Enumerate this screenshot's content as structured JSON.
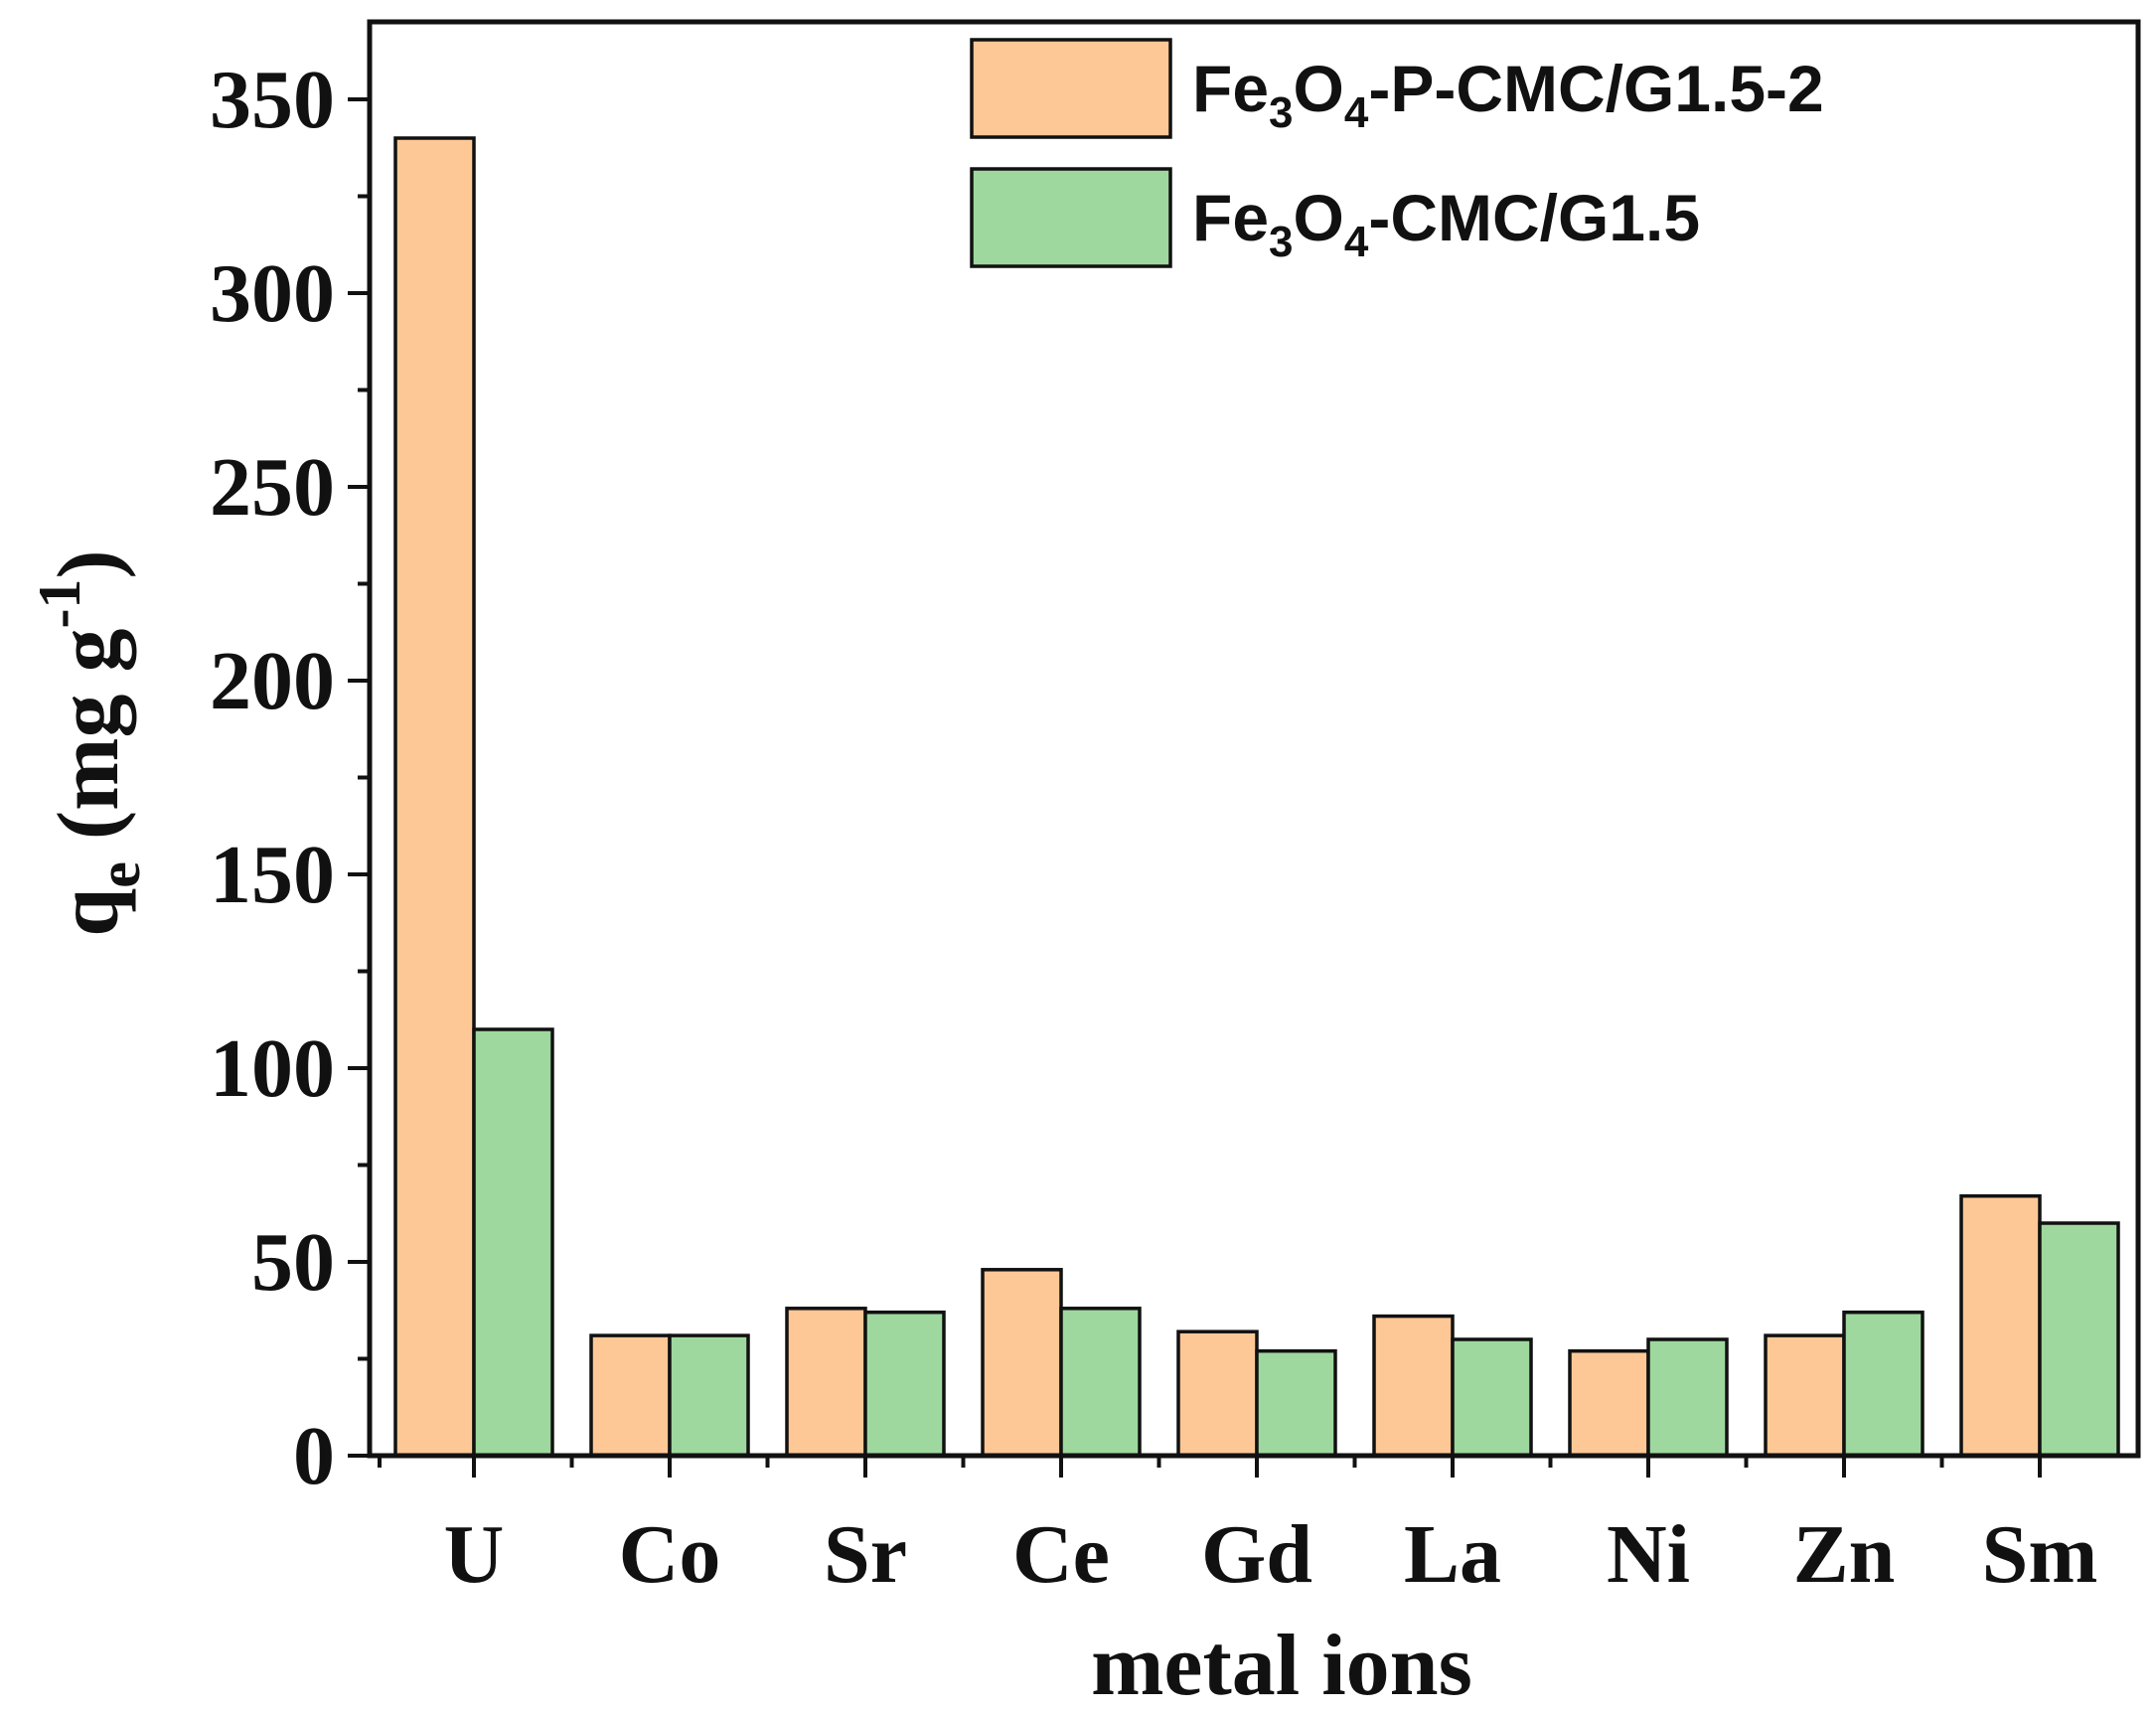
{
  "chart_data": {
    "type": "bar",
    "title": "",
    "xlabel": "metal ions",
    "ylabel": "q",
    "ylabel_sub": "e",
    "ylabel_unit_pre": " (mg g",
    "ylabel_unit_sup": "-1",
    "ylabel_unit_post": ")",
    "categories": [
      "U",
      "Co",
      "Sr",
      "Ce",
      "Gd",
      "La",
      "Ni",
      "Zn",
      "Sm"
    ],
    "ylim": [
      0,
      370
    ],
    "yticks": [
      0,
      50,
      100,
      150,
      200,
      250,
      300,
      350
    ],
    "legend_position": "top-right",
    "series": [
      {
        "name": "Fe3O4-P-CMC/G1.5-2",
        "name_parts": [
          [
            "Fe",
            ""
          ],
          [
            "3",
            "sub"
          ],
          [
            "O",
            ""
          ],
          [
            "4",
            "sub"
          ],
          [
            "-P-CMC/G1.5-2",
            ""
          ]
        ],
        "color": "#FDC896",
        "values": [
          340,
          31,
          38,
          48,
          32,
          36,
          27,
          31,
          67
        ]
      },
      {
        "name": "Fe3O4-CMC/G1.5",
        "name_parts": [
          [
            "Fe",
            ""
          ],
          [
            "3",
            "sub"
          ],
          [
            "O",
            ""
          ],
          [
            "4",
            "sub"
          ],
          [
            "-CMC/G1.5",
            ""
          ]
        ],
        "color": "#9ED89E",
        "values": [
          110,
          31,
          37,
          38,
          27,
          30,
          30,
          37,
          60
        ]
      }
    ]
  }
}
